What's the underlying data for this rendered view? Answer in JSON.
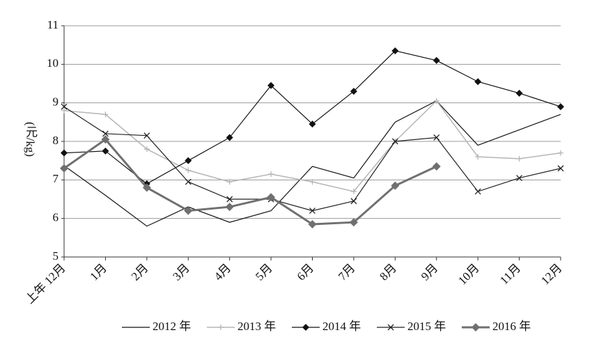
{
  "chart_data": {
    "type": "line",
    "ylabel": "(元/kg)",
    "categories": [
      "上年 12月",
      "1月",
      "2月",
      "3月",
      "4月",
      "5月",
      "6月",
      "7月",
      "8月",
      "9月",
      "10月",
      "11月",
      "12月"
    ],
    "series": [
      {
        "name": "2012 年",
        "color": "#111111",
        "marker": "none",
        "line_width": 1.2,
        "values": [
          7.37,
          6.6,
          5.8,
          6.3,
          5.9,
          6.2,
          7.35,
          7.05,
          8.5,
          9.05,
          7.9,
          8.3,
          8.7
        ]
      },
      {
        "name": "2013 年",
        "color": "#b5b5b5",
        "marker": "plus",
        "line_width": 1.5,
        "values": [
          8.8,
          8.7,
          7.8,
          7.25,
          6.95,
          7.15,
          6.95,
          6.7,
          8.0,
          9.05,
          7.6,
          7.55,
          7.7
        ]
      },
      {
        "name": "2014 年",
        "color": "#111111",
        "marker": "diamond",
        "line_width": 1.2,
        "values": [
          7.7,
          7.75,
          6.9,
          7.5,
          8.1,
          9.45,
          8.45,
          9.3,
          10.35,
          10.1,
          9.55,
          9.25,
          8.9
        ]
      },
      {
        "name": "2015 年",
        "color": "#222222",
        "marker": "x",
        "line_width": 1.2,
        "values": [
          8.9,
          8.2,
          8.15,
          6.95,
          6.5,
          6.5,
          6.2,
          6.45,
          8.0,
          8.1,
          6.7,
          7.05,
          7.3
        ]
      },
      {
        "name": "2016 年",
        "color": "#707070",
        "marker": "diamond",
        "line_width": 3,
        "values": [
          7.3,
          8.05,
          6.8,
          6.2,
          6.3,
          6.55,
          5.85,
          5.9,
          6.85,
          7.35,
          null,
          null,
          null
        ]
      }
    ],
    "ylim": [
      5,
      11
    ],
    "yticks": [
      5,
      6,
      7,
      8,
      9,
      10,
      11
    ],
    "grid": true
  }
}
